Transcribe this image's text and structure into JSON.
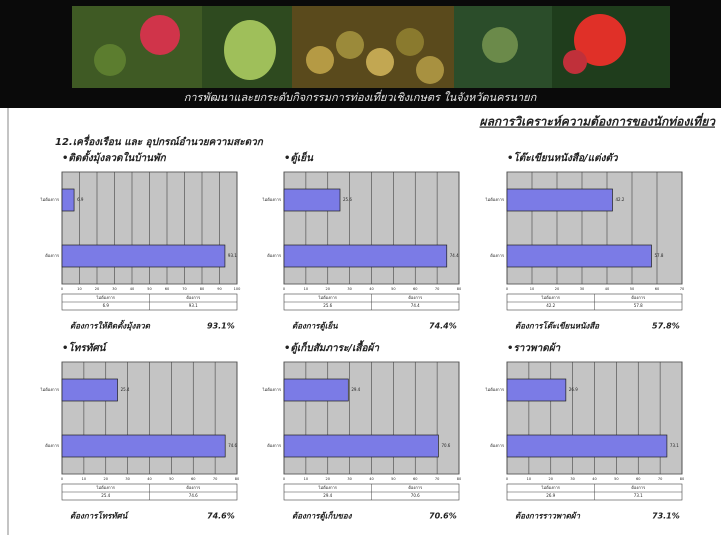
{
  "page": {
    "banner": "การพัฒนาและยกระดับกิจกรรมการท่องเที่ยวเชิงเกษตร ในจังหวัดนครนายก",
    "heading": "ผลการวิเคราะห์ความต้องการของนักท่องเที่ยว",
    "section": "12.เครื่องเรือน และ อุปกรณ์อำนวยความสะดวก"
  },
  "chart_data": [
    {
      "type": "hbar",
      "title": "•ติดตั้งมุ้งลวดในบ้านพัก",
      "categories": [
        "ไม่ต้องการ",
        "ต้องการ"
      ],
      "values": [
        6.9,
        93.1
      ],
      "color": "#7b7be6",
      "xlim": [
        0,
        100
      ],
      "xticks": [
        0,
        10,
        20,
        30,
        40,
        50,
        60,
        70,
        80,
        90,
        100
      ],
      "grid": true,
      "summary": "ต้องการให้ติดตั้งมุ้งลวด",
      "summary_value": "93.1%"
    },
    {
      "type": "hbar",
      "title": "•ตู้เย็น",
      "categories": [
        "ไม่ต้องการ",
        "ต้องการ"
      ],
      "values": [
        25.6,
        74.4
      ],
      "color": "#7b7be6",
      "xlim": [
        0,
        80
      ],
      "xticks": [
        0,
        10,
        20,
        30,
        40,
        50,
        60,
        70,
        80
      ],
      "grid": true,
      "summary": "ต้องการตู้เย็น",
      "summary_value": "74.4%"
    },
    {
      "type": "hbar",
      "title": "•โต๊ะเขียนหนังสือ/แต่งตัว",
      "categories": [
        "ไม่ต้องการ",
        "ต้องการ"
      ],
      "values": [
        42.2,
        57.8
      ],
      "color": "#7b7be6",
      "xlim": [
        0,
        70
      ],
      "xticks": [
        0,
        10,
        20,
        30,
        40,
        50,
        60,
        70
      ],
      "grid": true,
      "summary": "ต้องการโต๊ะเขียนหนังสือ",
      "summary_value": "57.8%"
    },
    {
      "type": "hbar",
      "title": "•โทรทัศน์",
      "categories": [
        "ไม่ต้องการ",
        "ต้องการ"
      ],
      "values": [
        25.4,
        74.6
      ],
      "color": "#7b7be6",
      "xlim": [
        0,
        80
      ],
      "xticks": [
        0,
        10,
        20,
        30,
        40,
        50,
        60,
        70,
        80
      ],
      "grid": true,
      "summary": "ต้องการโทรทัศน์",
      "summary_value": "74.6%"
    },
    {
      "type": "hbar",
      "title": "•ตู้เก็บสัมภาระ/เสื้อผ้า",
      "categories": [
        "ไม่ต้องการ",
        "ต้องการ"
      ],
      "values": [
        29.4,
        70.6
      ],
      "color": "#7b7be6",
      "xlim": [
        0,
        80
      ],
      "xticks": [
        0,
        10,
        20,
        30,
        40,
        50,
        60,
        70,
        80
      ],
      "grid": true,
      "summary": "ต้องการตู้เก็บของ",
      "summary_value": "70.6%"
    },
    {
      "type": "hbar",
      "title": "•ราวพาดผ้า",
      "categories": [
        "ไม่ต้องการ",
        "ต้องการ"
      ],
      "values": [
        26.9,
        73.1
      ],
      "color": "#7b7be6",
      "xlim": [
        0,
        80
      ],
      "xticks": [
        0,
        10,
        20,
        30,
        40,
        50,
        60,
        70,
        80
      ],
      "grid": true,
      "summary": "ต้องการราวพาดผ้า",
      "summary_value": "73.1%"
    }
  ]
}
